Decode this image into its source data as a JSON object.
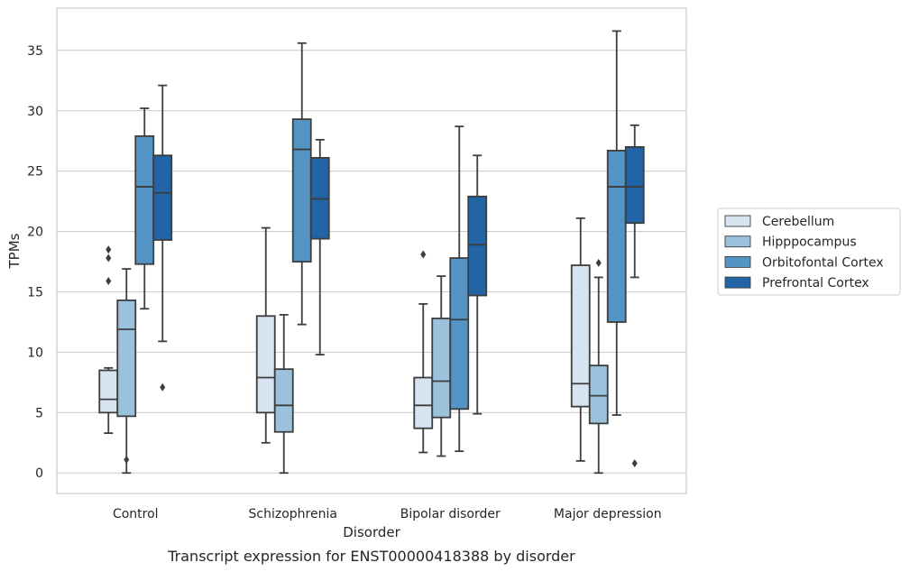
{
  "caption": "Transcript expression for ENST00000418388 by disorder",
  "chart_data": {
    "type": "box",
    "xlabel": "Disorder",
    "ylabel": "TPMs",
    "ylim": [
      -1.7,
      38.5
    ],
    "yticks": [
      0,
      5,
      10,
      15,
      20,
      25,
      30,
      35
    ],
    "grid": "horizontal",
    "legend_position": "right",
    "categories": [
      "Control",
      "Schizophrenia",
      "Bipolar disorder",
      "Major depression"
    ],
    "series": [
      {
        "name": "Cerebellum",
        "color": "#d6e3f1",
        "boxes": [
          {
            "whislo": 3.3,
            "q1": 5.0,
            "med": 6.1,
            "q3": 8.5,
            "whishi": 8.7,
            "fliers": [
              15.9,
              17.8,
              18.5
            ]
          },
          {
            "whislo": 2.5,
            "q1": 5.0,
            "med": 7.9,
            "q3": 13.0,
            "whishi": 20.3,
            "fliers": []
          },
          {
            "whislo": 1.7,
            "q1": 3.7,
            "med": 5.6,
            "q3": 7.9,
            "whishi": 14.0,
            "fliers": [
              18.1
            ]
          },
          {
            "whislo": 1.0,
            "q1": 5.5,
            "med": 7.4,
            "q3": 17.2,
            "whishi": 21.1,
            "fliers": []
          }
        ]
      },
      {
        "name": "Hipppocampus",
        "color": "#9ac2dd",
        "boxes": [
          {
            "whislo": 0.0,
            "q1": 4.7,
            "med": 11.9,
            "q3": 14.3,
            "whishi": 16.9,
            "fliers": [
              1.1
            ]
          },
          {
            "whislo": 0.0,
            "q1": 3.4,
            "med": 5.6,
            "q3": 8.6,
            "whishi": 13.1,
            "fliers": []
          },
          {
            "whislo": 1.4,
            "q1": 4.6,
            "med": 7.6,
            "q3": 12.8,
            "whishi": 16.3,
            "fliers": []
          },
          {
            "whislo": 0.0,
            "q1": 4.1,
            "med": 6.4,
            "q3": 8.9,
            "whishi": 16.2,
            "fliers": [
              17.4
            ]
          }
        ]
      },
      {
        "name": "Orbitofontal Cortex",
        "color": "#5394c4",
        "boxes": [
          {
            "whislo": 13.6,
            "q1": 17.3,
            "med": 23.7,
            "q3": 27.9,
            "whishi": 30.2,
            "fliers": []
          },
          {
            "whislo": 12.3,
            "q1": 17.5,
            "med": 26.8,
            "q3": 29.3,
            "whishi": 35.6,
            "fliers": []
          },
          {
            "whislo": 1.8,
            "q1": 5.3,
            "med": 12.7,
            "q3": 17.8,
            "whishi": 28.7,
            "fliers": []
          },
          {
            "whislo": 4.8,
            "q1": 12.5,
            "med": 23.7,
            "q3": 26.7,
            "whishi": 36.6,
            "fliers": []
          }
        ]
      },
      {
        "name": "Prefrontal Cortex",
        "color": "#2265a7",
        "boxes": [
          {
            "whislo": 10.9,
            "q1": 19.3,
            "med": 23.2,
            "q3": 26.3,
            "whishi": 32.1,
            "fliers": [
              7.1
            ]
          },
          {
            "whislo": 9.8,
            "q1": 19.4,
            "med": 22.7,
            "q3": 26.1,
            "whishi": 27.6,
            "fliers": []
          },
          {
            "whislo": 4.9,
            "q1": 14.7,
            "med": 18.9,
            "q3": 22.9,
            "whishi": 26.3,
            "fliers": []
          },
          {
            "whislo": 16.2,
            "q1": 20.7,
            "med": 23.7,
            "q3": 27.0,
            "whishi": 28.8,
            "fliers": [
              0.8
            ]
          }
        ]
      }
    ]
  }
}
